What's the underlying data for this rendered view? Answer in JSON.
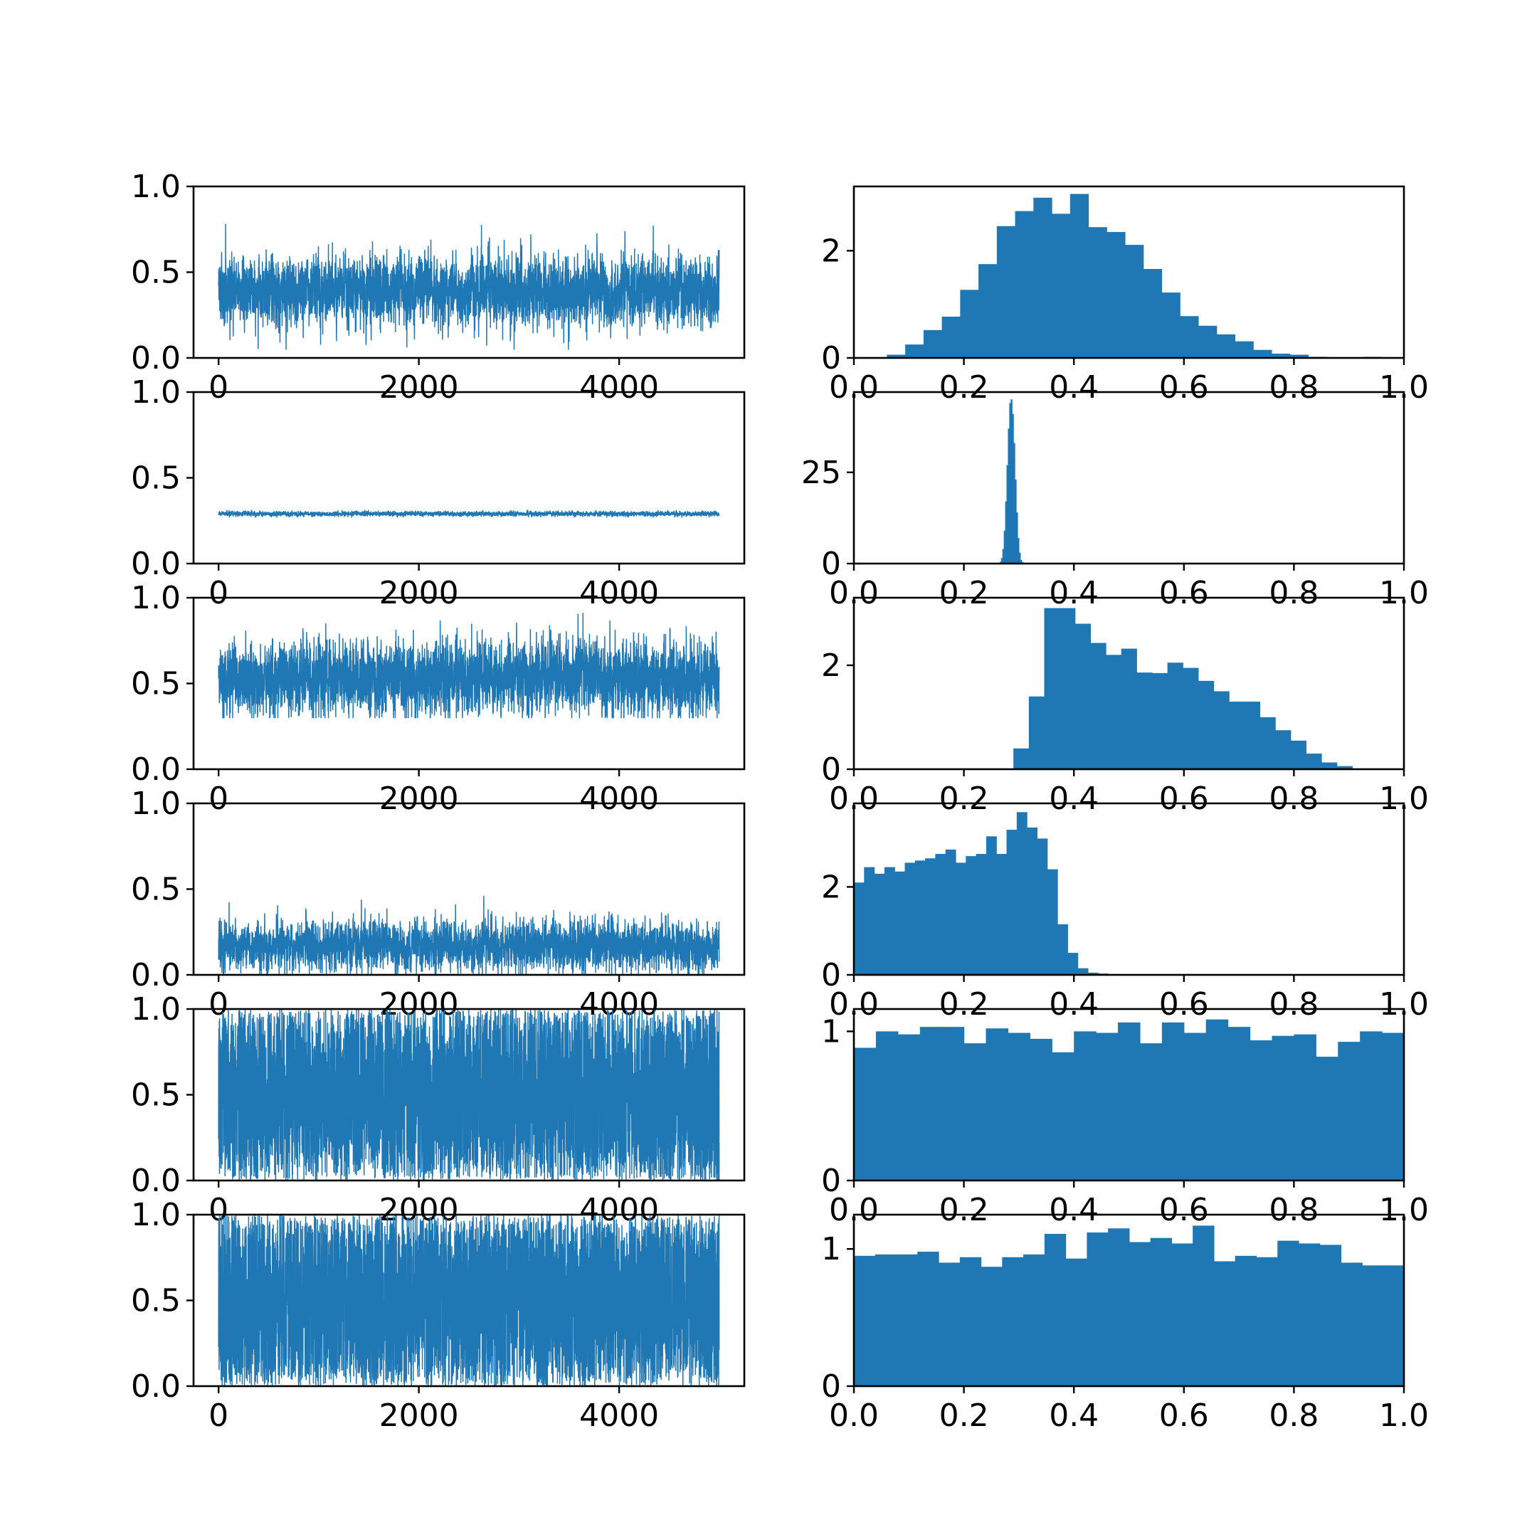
{
  "figure": {
    "background": "#ffffff",
    "series_color": "#1f77b4",
    "layout": "6 rows x 2 columns: left = trace, right = histogram"
  },
  "chart_data": [
    {
      "type": "line",
      "panel": "trace",
      "row": 1,
      "xlim": [
        -250,
        5250
      ],
      "ylim": [
        0,
        1
      ],
      "xticks": [
        0,
        2000,
        4000
      ],
      "xticklabels": [
        "0",
        "2000",
        "4000"
      ],
      "yticks": [
        0,
        0.5,
        1
      ],
      "yticklabels": [
        "0.0",
        "0.5",
        "1.0"
      ],
      "n_samples": 5000,
      "center": 0.39,
      "spread": 0.14,
      "min": 0.05,
      "max": 0.9,
      "xlabel": "",
      "ylabel": "",
      "grid": false
    },
    {
      "type": "bar",
      "panel": "histogram",
      "row": 1,
      "xlim": [
        0,
        1
      ],
      "ylim": [
        0,
        3.2
      ],
      "xticks": [
        0,
        0.2,
        0.4,
        0.6,
        0.8,
        1
      ],
      "xticklabels": [
        "0.0",
        "0.2",
        "0.4",
        "0.6",
        "0.8",
        "1.0"
      ],
      "yticks": [
        0,
        2
      ],
      "yticklabels": [
        "0",
        "2"
      ],
      "bin_start": 0.06,
      "bin_width": 0.0333,
      "values": [
        0.06,
        0.25,
        0.52,
        0.77,
        1.27,
        1.75,
        2.46,
        2.74,
        2.99,
        2.69,
        3.06,
        2.44,
        2.35,
        2.11,
        1.66,
        1.22,
        0.78,
        0.6,
        0.44,
        0.31,
        0.15,
        0.08,
        0.06,
        0.02,
        0.01,
        0.01,
        0.02
      ],
      "grid": false
    },
    {
      "type": "line",
      "panel": "trace",
      "row": 2,
      "xlim": [
        -250,
        5250
      ],
      "ylim": [
        0,
        1
      ],
      "xticks": [
        0,
        2000,
        4000
      ],
      "xticklabels": [
        "0",
        "2000",
        "4000"
      ],
      "yticks": [
        0,
        0.5,
        1
      ],
      "yticklabels": [
        "0.0",
        "0.5",
        "1.0"
      ],
      "n_samples": 5000,
      "center": 0.29,
      "spread": 0.009,
      "min": 0.27,
      "max": 0.31,
      "grid": false
    },
    {
      "type": "bar",
      "panel": "histogram",
      "row": 2,
      "xlim": [
        0,
        1
      ],
      "ylim": [
        0,
        47
      ],
      "xticks": [
        0,
        0.2,
        0.4,
        0.6,
        0.8,
        1
      ],
      "xticklabels": [
        "0.0",
        "0.2",
        "0.4",
        "0.6",
        "0.8",
        "1.0"
      ],
      "yticks": [
        0,
        25
      ],
      "yticklabels": [
        "0",
        "25"
      ],
      "bin_start": 0.265,
      "bin_width": 0.0025,
      "values": [
        0.5,
        1.5,
        4,
        9,
        17,
        27,
        37,
        44,
        45,
        41,
        33,
        23,
        14,
        7,
        3,
        1,
        0.4
      ],
      "grid": false
    },
    {
      "type": "line",
      "panel": "trace",
      "row": 3,
      "xlim": [
        -250,
        5250
      ],
      "ylim": [
        0,
        1
      ],
      "xticks": [
        0,
        2000,
        4000
      ],
      "xticklabels": [
        "0",
        "2000",
        "4000"
      ],
      "yticks": [
        0,
        0.5,
        1
      ],
      "yticklabels": [
        "0.0",
        "0.5",
        "1.0"
      ],
      "n_samples": 5000,
      "center": 0.53,
      "spread": 0.15,
      "min": 0.3,
      "max": 0.99,
      "grid": false
    },
    {
      "type": "bar",
      "panel": "histogram",
      "row": 3,
      "xlim": [
        0,
        1
      ],
      "ylim": [
        0,
        3.3
      ],
      "xticks": [
        0,
        0.2,
        0.4,
        0.6,
        0.8,
        1
      ],
      "xticklabels": [
        "0.0",
        "0.2",
        "0.4",
        "0.6",
        "0.8",
        "1.0"
      ],
      "yticks": [
        0,
        2
      ],
      "yticklabels": [
        "0",
        "2"
      ],
      "bin_start": 0.29,
      "bin_width": 0.028,
      "values": [
        0.4,
        1.4,
        3.1,
        3.1,
        2.8,
        2.43,
        2.2,
        2.32,
        1.86,
        1.85,
        2.05,
        1.95,
        1.7,
        1.5,
        1.3,
        1.3,
        1.0,
        0.75,
        0.55,
        0.3,
        0.13,
        0.06
      ],
      "grid": false
    },
    {
      "type": "line",
      "panel": "trace",
      "row": 4,
      "xlim": [
        -250,
        5250
      ],
      "ylim": [
        0,
        1
      ],
      "xticks": [
        0,
        2000,
        4000
      ],
      "xticklabels": [
        "0",
        "2000",
        "4000"
      ],
      "yticks": [
        0,
        0.5,
        1
      ],
      "yticklabels": [
        "0.0",
        "0.5",
        "1.0"
      ],
      "n_samples": 5000,
      "center": 0.17,
      "spread": 0.1,
      "min": 0,
      "max": 0.46,
      "grid": false
    },
    {
      "type": "bar",
      "panel": "histogram",
      "row": 4,
      "xlim": [
        0,
        1
      ],
      "ylim": [
        0,
        3.9
      ],
      "xticks": [
        0,
        0.2,
        0.4,
        0.6,
        0.8,
        1
      ],
      "xticklabels": [
        "0.0",
        "0.2",
        "0.4",
        "0.6",
        "0.8",
        "1.0"
      ],
      "yticks": [
        0,
        2
      ],
      "yticklabels": [
        "0",
        "2"
      ],
      "bin_start": 0,
      "bin_width": 0.0185,
      "values": [
        2.1,
        2.45,
        2.3,
        2.45,
        2.35,
        2.55,
        2.6,
        2.65,
        2.75,
        2.85,
        2.55,
        2.7,
        2.75,
        3.15,
        2.75,
        3.3,
        3.7,
        3.35,
        3.1,
        2.4,
        1.15,
        0.5,
        0.15,
        0.05,
        0.03
      ],
      "grid": false
    },
    {
      "type": "line",
      "panel": "trace",
      "row": 5,
      "xlim": [
        -250,
        5250
      ],
      "ylim": [
        0,
        1
      ],
      "xticks": [
        0,
        2000,
        4000
      ],
      "xticklabels": [
        "0",
        "2000",
        "4000"
      ],
      "yticks": [
        0,
        0.5,
        1
      ],
      "yticklabels": [
        "0.0",
        "0.5",
        "1.0"
      ],
      "n_samples": 5000,
      "center": 0.5,
      "spread": 0.29,
      "min": 0,
      "max": 1,
      "grid": false
    },
    {
      "type": "bar",
      "panel": "histogram",
      "row": 5,
      "xlim": [
        0,
        1
      ],
      "ylim": [
        0,
        1.15
      ],
      "xticks": [
        0,
        0.2,
        0.4,
        0.6,
        0.8,
        1
      ],
      "xticklabels": [
        "0.0",
        "0.2",
        "0.4",
        "0.6",
        "0.8",
        "1.0"
      ],
      "yticks": [
        0,
        1
      ],
      "yticklabels": [
        "0",
        "1"
      ],
      "bin_start": 0,
      "bin_width": 0.04,
      "values": [
        0.89,
        1.0,
        0.98,
        1.03,
        1.03,
        0.92,
        1.02,
        0.99,
        0.95,
        0.86,
        1.0,
        0.99,
        1.06,
        0.92,
        1.06,
        0.99,
        1.08,
        1.03,
        0.94,
        0.97,
        0.98,
        0.83,
        0.93,
        1.0,
        0.99
      ],
      "grid": false
    },
    {
      "type": "line",
      "panel": "trace",
      "row": 6,
      "xlim": [
        -250,
        5250
      ],
      "ylim": [
        0,
        1
      ],
      "xticks": [
        0,
        2000,
        4000
      ],
      "xticklabels": [
        "0",
        "2000",
        "4000"
      ],
      "yticks": [
        0,
        0.5,
        1
      ],
      "yticklabels": [
        "0.0",
        "0.5",
        "1.0"
      ],
      "n_samples": 5000,
      "center": 0.5,
      "spread": 0.29,
      "min": 0,
      "max": 1,
      "grid": false
    },
    {
      "type": "bar",
      "panel": "histogram",
      "row": 6,
      "xlim": [
        0,
        1
      ],
      "ylim": [
        0,
        1.25
      ],
      "xticks": [
        0,
        0.2,
        0.4,
        0.6,
        0.8,
        1
      ],
      "xticklabels": [
        "0.0",
        "0.2",
        "0.4",
        "0.6",
        "0.8",
        "1.0"
      ],
      "yticks": [
        0,
        1
      ],
      "yticklabels": [
        "0",
        "1"
      ],
      "bin_start": 0,
      "bin_width": 0.0385,
      "values": [
        0.95,
        0.96,
        0.96,
        0.98,
        0.9,
        0.94,
        0.87,
        0.94,
        0.96,
        1.11,
        0.93,
        1.12,
        1.15,
        1.05,
        1.08,
        1.04,
        1.17,
        0.91,
        0.95,
        0.94,
        1.06,
        1.04,
        1.03,
        0.9,
        0.88,
        0.88
      ],
      "grid": false
    }
  ]
}
